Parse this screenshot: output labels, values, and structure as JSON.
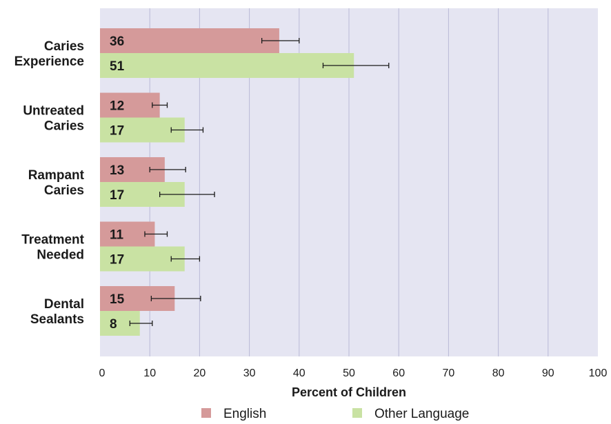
{
  "chart_data": {
    "type": "bar",
    "orientation": "horizontal",
    "categories": [
      [
        "Caries",
        "Experience"
      ],
      [
        "Untreated",
        "Caries"
      ],
      [
        "Rampant",
        "Caries"
      ],
      [
        "Treatment",
        "Needed"
      ],
      [
        "Dental",
        "Sealants"
      ]
    ],
    "series": [
      {
        "name": "English",
        "color": "#d59a9a",
        "values": [
          36,
          12,
          13,
          11,
          15
        ],
        "error_low": [
          32.5,
          10.5,
          10.0,
          9.0,
          10.3
        ],
        "error_high": [
          40.0,
          13.5,
          17.2,
          13.5,
          20.2
        ]
      },
      {
        "name": "Other Language",
        "color": "#c9e2a3",
        "values": [
          51,
          17,
          17,
          17,
          8
        ],
        "error_low": [
          44.8,
          14.3,
          12.0,
          14.3,
          6.0
        ],
        "error_high": [
          58.0,
          20.7,
          23.0,
          20.0,
          10.5
        ]
      }
    ],
    "xlabel": "Percent of Children",
    "xlim": [
      0,
      100
    ],
    "xticks": [
      0,
      10,
      20,
      30,
      40,
      50,
      60,
      70,
      80,
      90,
      100
    ],
    "grid": true,
    "legend_position": "bottom",
    "plot_background": "#e5e5f2",
    "grid_color": "#b9b9d6"
  }
}
